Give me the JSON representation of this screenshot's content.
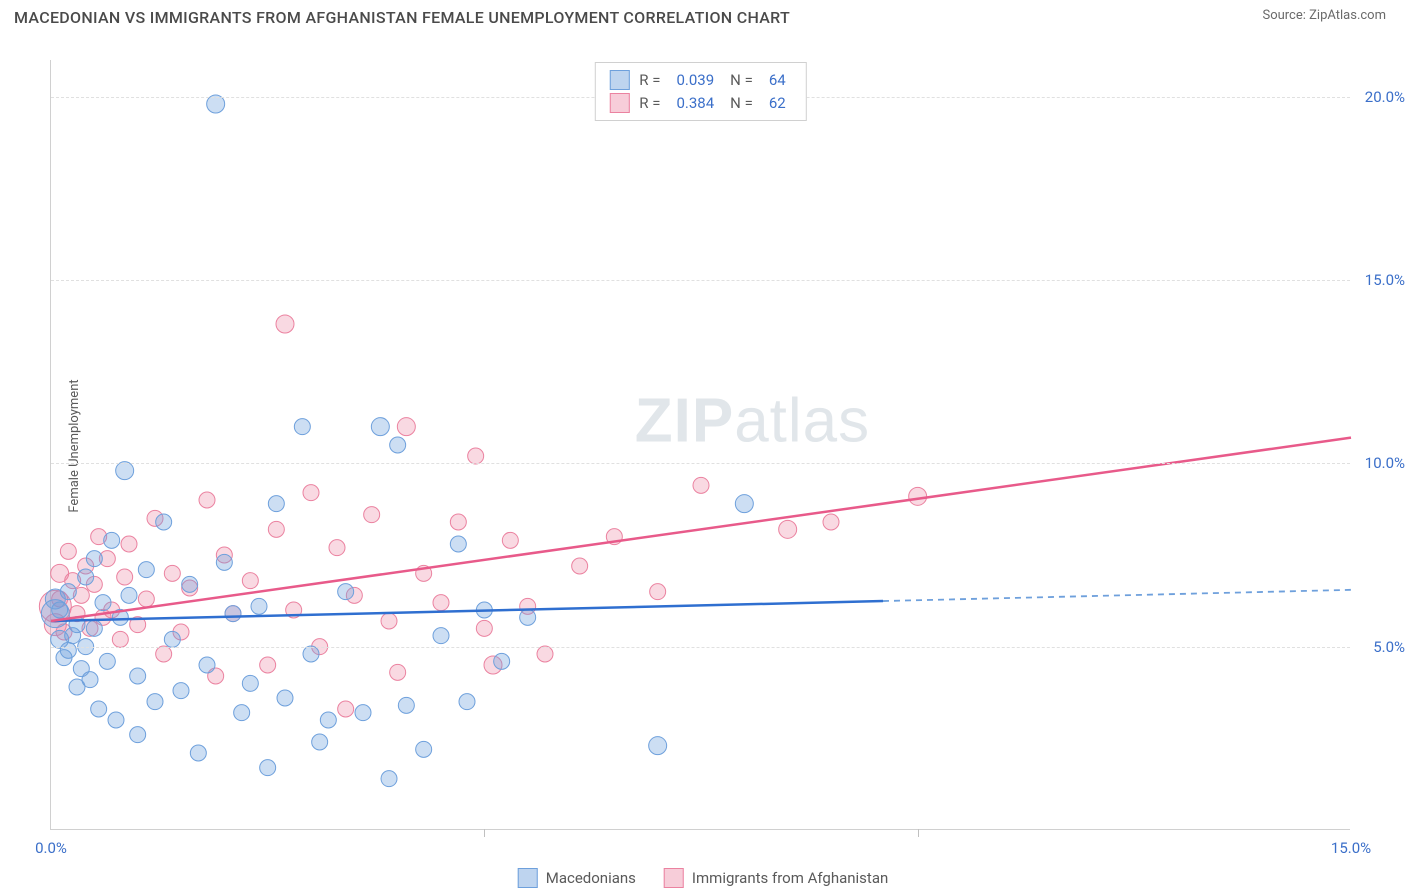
{
  "header": {
    "title": "MACEDONIAN VS IMMIGRANTS FROM AFGHANISTAN FEMALE UNEMPLOYMENT CORRELATION CHART",
    "source": "Source: ZipAtlas.com"
  },
  "y_axis": {
    "label": "Female Unemployment"
  },
  "watermark": {
    "part1": "ZIP",
    "part2": "atlas"
  },
  "chart": {
    "type": "scatter",
    "xlim": [
      0,
      15
    ],
    "ylim": [
      0,
      21
    ],
    "x_ticks": [
      0.0,
      5.0,
      10.0,
      15.0
    ],
    "x_tick_labels": [
      "0.0%",
      "",
      "",
      "15.0%"
    ],
    "y_ticks": [
      5.0,
      10.0,
      15.0,
      20.0
    ],
    "y_tick_labels": [
      "5.0%",
      "10.0%",
      "15.0%",
      "20.0%"
    ],
    "grid_color": "#e0e0e0",
    "background_color": "#ffffff",
    "series": {
      "blue": {
        "name": "Macedonians",
        "fill": "rgba(110,160,220,0.35)",
        "stroke": "#6ea0dc",
        "swatch_fill": "rgba(110,160,220,0.45)",
        "swatch_stroke": "#6ea0dc",
        "R": "0.039",
        "N": "64",
        "trend": {
          "x1": 0,
          "y1": 5.7,
          "x2": 15,
          "y2": 6.55,
          "solid_until_x": 9.6,
          "color": "#2f6fd0",
          "dash_color": "#6ea0dc"
        },
        "points": [
          [
            0.05,
            5.9,
            14
          ],
          [
            0.05,
            6.3,
            10
          ],
          [
            0.1,
            5.2,
            9
          ],
          [
            0.1,
            6.0,
            8
          ],
          [
            0.15,
            4.7,
            8
          ],
          [
            0.2,
            4.9,
            8
          ],
          [
            0.2,
            6.5,
            8
          ],
          [
            0.25,
            5.3,
            8
          ],
          [
            0.3,
            3.9,
            8
          ],
          [
            0.3,
            5.6,
            8
          ],
          [
            0.35,
            4.4,
            8
          ],
          [
            0.4,
            6.9,
            8
          ],
          [
            0.4,
            5.0,
            8
          ],
          [
            0.45,
            4.1,
            8
          ],
          [
            0.5,
            7.4,
            8
          ],
          [
            0.5,
            5.5,
            8
          ],
          [
            0.55,
            3.3,
            8
          ],
          [
            0.6,
            6.2,
            8
          ],
          [
            0.65,
            4.6,
            8
          ],
          [
            0.7,
            7.9,
            8
          ],
          [
            0.75,
            3.0,
            8
          ],
          [
            0.8,
            5.8,
            8
          ],
          [
            0.85,
            9.8,
            9
          ],
          [
            0.9,
            6.4,
            8
          ],
          [
            1.0,
            4.2,
            8
          ],
          [
            1.0,
            2.6,
            8
          ],
          [
            1.1,
            7.1,
            8
          ],
          [
            1.2,
            3.5,
            8
          ],
          [
            1.3,
            8.4,
            8
          ],
          [
            1.4,
            5.2,
            8
          ],
          [
            1.5,
            3.8,
            8
          ],
          [
            1.6,
            6.7,
            8
          ],
          [
            1.7,
            2.1,
            8
          ],
          [
            1.8,
            4.5,
            8
          ],
          [
            1.9,
            19.8,
            9
          ],
          [
            2.0,
            7.3,
            8
          ],
          [
            2.1,
            5.9,
            8
          ],
          [
            2.2,
            3.2,
            8
          ],
          [
            2.3,
            4.0,
            8
          ],
          [
            2.4,
            6.1,
            8
          ],
          [
            2.5,
            1.7,
            8
          ],
          [
            2.6,
            8.9,
            8
          ],
          [
            2.7,
            3.6,
            8
          ],
          [
            2.9,
            11.0,
            8
          ],
          [
            3.0,
            4.8,
            8
          ],
          [
            3.1,
            2.4,
            8
          ],
          [
            3.2,
            3.0,
            8
          ],
          [
            3.4,
            6.5,
            8
          ],
          [
            3.6,
            3.2,
            8
          ],
          [
            3.8,
            11.0,
            9
          ],
          [
            3.9,
            1.4,
            8
          ],
          [
            4.0,
            10.5,
            8
          ],
          [
            4.1,
            3.4,
            8
          ],
          [
            4.3,
            2.2,
            8
          ],
          [
            4.5,
            5.3,
            8
          ],
          [
            4.7,
            7.8,
            8
          ],
          [
            4.8,
            3.5,
            8
          ],
          [
            5.0,
            6.0,
            8
          ],
          [
            5.2,
            4.6,
            8
          ],
          [
            5.5,
            5.8,
            8
          ],
          [
            7.0,
            2.3,
            9
          ],
          [
            8.0,
            8.9,
            9
          ]
        ]
      },
      "pink": {
        "name": "Immigrants from Afghanistan",
        "fill": "rgba(235,130,160,0.30)",
        "stroke": "#eb82a0",
        "swatch_fill": "rgba(235,130,160,0.40)",
        "swatch_stroke": "#eb82a0",
        "R": "0.384",
        "N": "62",
        "trend": {
          "x1": 0,
          "y1": 5.7,
          "x2": 15,
          "y2": 10.7,
          "solid_until_x": 15,
          "color": "#e85a8a",
          "dash_color": "#e85a8a"
        },
        "points": [
          [
            0.05,
            6.1,
            16
          ],
          [
            0.05,
            5.6,
            11
          ],
          [
            0.1,
            7.0,
            9
          ],
          [
            0.1,
            6.3,
            8
          ],
          [
            0.15,
            5.4,
            8
          ],
          [
            0.2,
            7.6,
            8
          ],
          [
            0.25,
            6.8,
            8
          ],
          [
            0.3,
            5.9,
            8
          ],
          [
            0.35,
            6.4,
            8
          ],
          [
            0.4,
            7.2,
            8
          ],
          [
            0.45,
            5.5,
            8
          ],
          [
            0.5,
            6.7,
            8
          ],
          [
            0.55,
            8.0,
            8
          ],
          [
            0.6,
            5.8,
            8
          ],
          [
            0.65,
            7.4,
            8
          ],
          [
            0.7,
            6.0,
            8
          ],
          [
            0.8,
            5.2,
            8
          ],
          [
            0.85,
            6.9,
            8
          ],
          [
            0.9,
            7.8,
            8
          ],
          [
            1.0,
            5.6,
            8
          ],
          [
            1.1,
            6.3,
            8
          ],
          [
            1.2,
            8.5,
            8
          ],
          [
            1.3,
            4.8,
            8
          ],
          [
            1.4,
            7.0,
            8
          ],
          [
            1.5,
            5.4,
            8
          ],
          [
            1.6,
            6.6,
            8
          ],
          [
            1.8,
            9.0,
            8
          ],
          [
            1.9,
            4.2,
            8
          ],
          [
            2.0,
            7.5,
            8
          ],
          [
            2.1,
            5.9,
            8
          ],
          [
            2.3,
            6.8,
            8
          ],
          [
            2.5,
            4.5,
            8
          ],
          [
            2.6,
            8.2,
            8
          ],
          [
            2.7,
            13.8,
            9
          ],
          [
            2.8,
            6.0,
            8
          ],
          [
            3.0,
            9.2,
            8
          ],
          [
            3.1,
            5.0,
            8
          ],
          [
            3.3,
            7.7,
            8
          ],
          [
            3.4,
            3.3,
            8
          ],
          [
            3.5,
            6.4,
            8
          ],
          [
            3.7,
            8.6,
            8
          ],
          [
            3.9,
            5.7,
            8
          ],
          [
            4.0,
            4.3,
            8
          ],
          [
            4.1,
            11.0,
            9
          ],
          [
            4.3,
            7.0,
            8
          ],
          [
            4.5,
            6.2,
            8
          ],
          [
            4.7,
            8.4,
            8
          ],
          [
            4.9,
            10.2,
            8
          ],
          [
            5.0,
            5.5,
            8
          ],
          [
            5.1,
            4.5,
            9
          ],
          [
            5.3,
            7.9,
            8
          ],
          [
            5.5,
            6.1,
            8
          ],
          [
            5.7,
            4.8,
            8
          ],
          [
            6.1,
            7.2,
            8
          ],
          [
            6.5,
            8.0,
            8
          ],
          [
            7.0,
            6.5,
            8
          ],
          [
            7.5,
            9.4,
            8
          ],
          [
            8.5,
            8.2,
            9
          ],
          [
            9.0,
            8.4,
            8
          ],
          [
            10.0,
            9.1,
            9
          ]
        ]
      }
    }
  },
  "legend_box": {
    "r_label": "R =",
    "n_label": "N ="
  },
  "bottom_legend": {
    "items": [
      "blue",
      "pink"
    ]
  }
}
